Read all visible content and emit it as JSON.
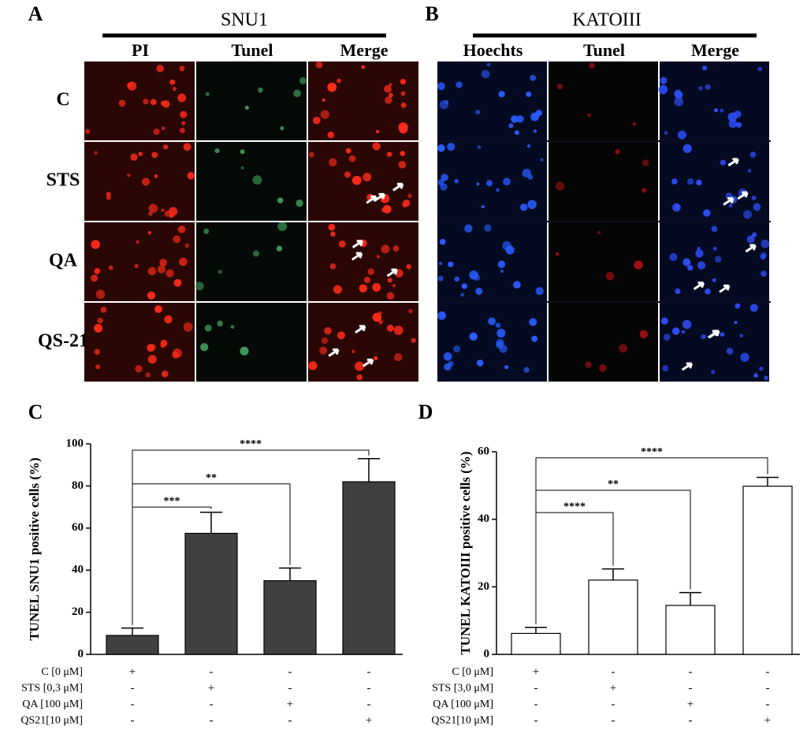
{
  "panel_a": {
    "letter": "A",
    "title": "SNU1",
    "columns": [
      "PI",
      "Tunel",
      "Merge"
    ],
    "rows": [
      "C",
      "STS",
      "QA",
      "QS-21"
    ]
  },
  "panel_b": {
    "letter": "B",
    "title": "KATOIII",
    "columns": [
      "Hoechts",
      "Tunel",
      "Merge"
    ]
  },
  "chart_data": [
    {
      "type": "bar",
      "letter": "C",
      "y_label": "TUNEL SNU1 positive cells (%)",
      "values": [
        9,
        57.5,
        35,
        82
      ],
      "errors": [
        3.5,
        10,
        6,
        11
      ],
      "color": "#404040",
      "ylim": [
        0,
        100
      ],
      "yticks": [
        0,
        20,
        40,
        60,
        80,
        100
      ],
      "significance": [
        "***",
        "**",
        "****"
      ],
      "conditions": [
        {
          "label": "C [0 μM]",
          "marks": [
            "+",
            "-",
            "-",
            "-"
          ]
        },
        {
          "label": "STS [0,3 μM]",
          "marks": [
            "-",
            "+",
            "-",
            "-"
          ]
        },
        {
          "label": "QA [100 μM]",
          "marks": [
            "-",
            "-",
            "+",
            "-"
          ]
        },
        {
          "label": "QS21[10 μM]",
          "marks": [
            "-",
            "-",
            "-",
            "+"
          ]
        }
      ]
    },
    {
      "type": "bar",
      "letter": "D",
      "y_label": "TUNEL KATOIII positive cells (%)",
      "values": [
        6.2,
        22,
        14.5,
        49.8
      ],
      "errors": [
        1.8,
        3.3,
        3.8,
        2.6
      ],
      "color": "#ffffff",
      "ylim": [
        0,
        60
      ],
      "yticks": [
        0,
        20,
        40,
        60
      ],
      "significance": [
        "****",
        "**",
        "****"
      ],
      "conditions": [
        {
          "label": "C [0 μM]",
          "marks": [
            "+",
            "-",
            "-",
            "-"
          ]
        },
        {
          "label": "STS [3,0 μM]",
          "marks": [
            "-",
            "+",
            "-",
            "-"
          ]
        },
        {
          "label": "QA [100 μM]",
          "marks": [
            "-",
            "-",
            "+",
            "-"
          ]
        },
        {
          "label": "QS21[10 μM]",
          "marks": [
            "-",
            "-",
            "-",
            "+"
          ]
        }
      ]
    }
  ]
}
